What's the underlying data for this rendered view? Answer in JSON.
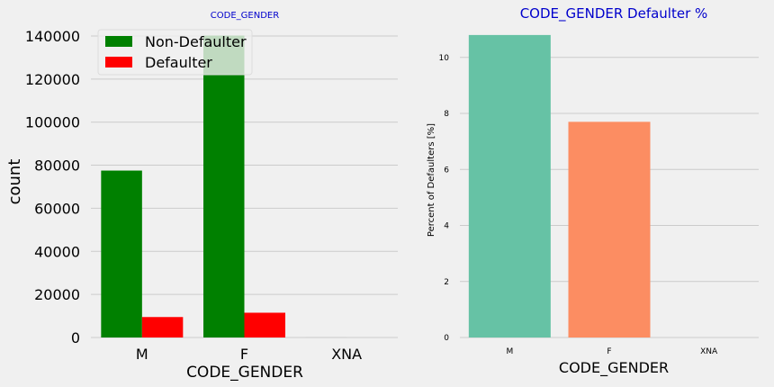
{
  "chart_data": [
    {
      "type": "bar",
      "title": "CODE_GENDER",
      "xlabel": "CODE_GENDER",
      "ylabel": "count",
      "categories": [
        "M",
        "F",
        "XNA"
      ],
      "ylim": [
        0,
        145000
      ],
      "yticks": [
        0,
        20000,
        40000,
        60000,
        80000,
        100000,
        120000,
        140000
      ],
      "legend_position": "top-left",
      "grid": true,
      "series": [
        {
          "name": "Non-Defaulter",
          "color": "#008000",
          "values": [
            77500,
            140200,
            4
          ]
        },
        {
          "name": "Defaulter",
          "color": "#ff0000",
          "values": [
            9500,
            11500,
            0
          ]
        }
      ]
    },
    {
      "type": "bar",
      "title": "CODE_GENDER Defaulter %",
      "xlabel": "CODE_GENDER",
      "ylabel": "Percent of Defaulters [%]",
      "categories": [
        "M",
        "F",
        "XNA"
      ],
      "ylim": [
        0,
        11.15
      ],
      "yticks": [
        0,
        2,
        4,
        6,
        8,
        10
      ],
      "grid": true,
      "colors": [
        "#66c2a5",
        "#fc8d62",
        "#8da0cb"
      ],
      "values": [
        10.8,
        7.7,
        0
      ]
    }
  ]
}
